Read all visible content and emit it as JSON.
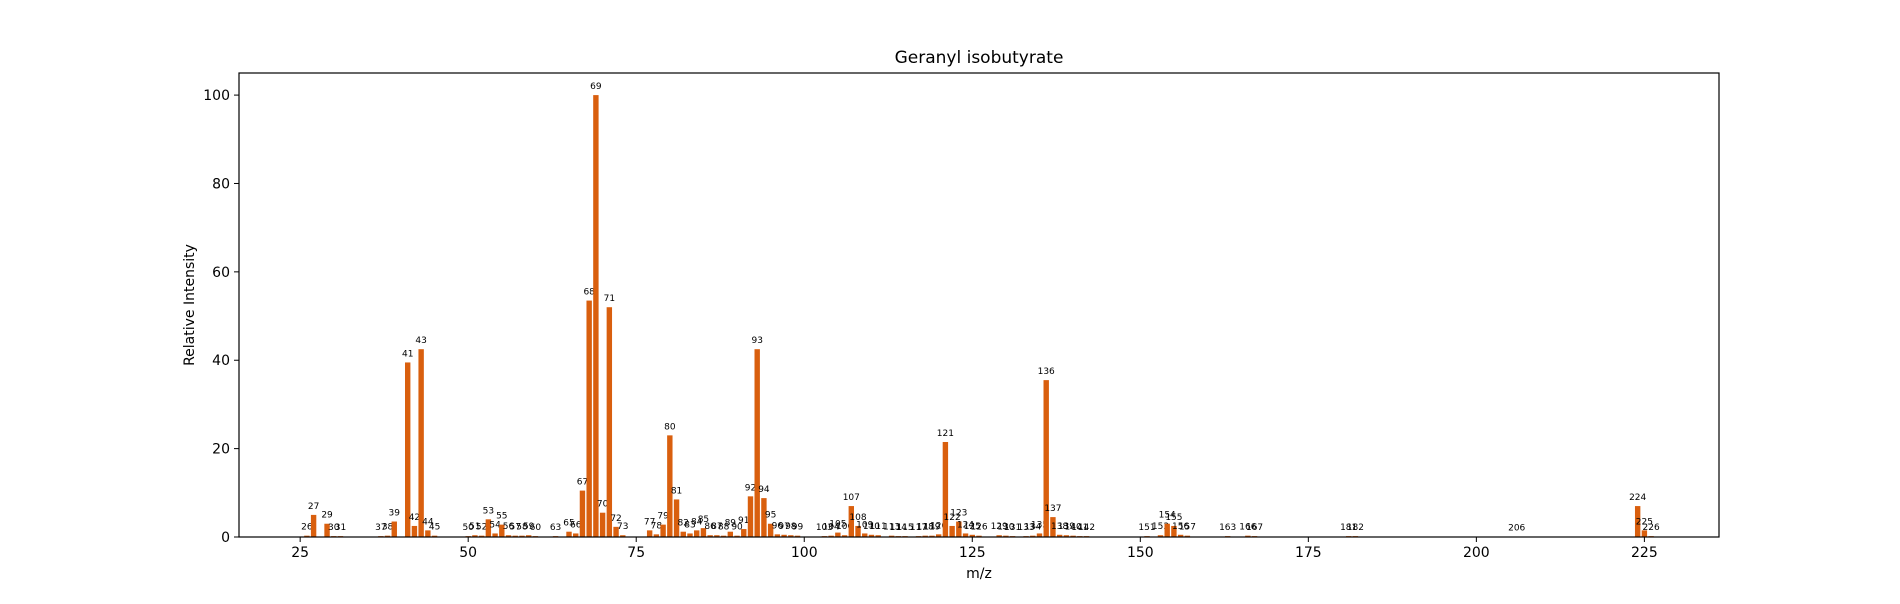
{
  "chart_data": {
    "type": "bar",
    "title": "Geranyl isobutyrate",
    "xlabel": "m/z",
    "ylabel": "Relative Intensity",
    "xlim": [
      15.9,
      236.1
    ],
    "ylim": [
      0,
      105
    ],
    "xticks": [
      25,
      50,
      75,
      100,
      125,
      150,
      175,
      200,
      225
    ],
    "yticks": [
      0,
      20,
      40,
      60,
      80,
      100
    ],
    "grid": false,
    "bar_color": "#d95f0e",
    "x": [
      26,
      27,
      29,
      30,
      31,
      37,
      38,
      39,
      41,
      42,
      43,
      44,
      45,
      50,
      51,
      52,
      53,
      54,
      55,
      56,
      57,
      58,
      59,
      60,
      63,
      65,
      66,
      67,
      68,
      69,
      70,
      71,
      72,
      73,
      77,
      78,
      79,
      80,
      81,
      82,
      83,
      84,
      85,
      86,
      87,
      88,
      89,
      90,
      91,
      92,
      93,
      94,
      95,
      96,
      97,
      98,
      99,
      103,
      104,
      105,
      106,
      107,
      108,
      109,
      110,
      111,
      113,
      114,
      115,
      117,
      118,
      119,
      120,
      121,
      122,
      123,
      124,
      125,
      126,
      129,
      130,
      131,
      133,
      134,
      135,
      136,
      137,
      138,
      139,
      140,
      141,
      142,
      151,
      153,
      154,
      155,
      156,
      157,
      163,
      166,
      167,
      181,
      182,
      206,
      224,
      225,
      226
    ],
    "y": [
      0.3,
      5.0,
      3.0,
      0.2,
      0.2,
      0.2,
      0.3,
      3.5,
      39.5,
      2.5,
      42.5,
      1.5,
      0.3,
      0.2,
      0.4,
      0.3,
      4.0,
      0.8,
      2.8,
      0.4,
      0.3,
      0.3,
      0.4,
      0.2,
      0.2,
      1.2,
      0.8,
      10.5,
      53.5,
      100,
      5.5,
      52,
      2.3,
      0.4,
      1.5,
      0.6,
      2.8,
      23,
      8.5,
      1.2,
      0.8,
      1.5,
      2.0,
      0.4,
      0.4,
      0.3,
      1.2,
      0.3,
      1.8,
      9.2,
      42.5,
      8.8,
      3.0,
      0.6,
      0.5,
      0.4,
      0.3,
      0.2,
      0.3,
      1.0,
      0.4,
      7.0,
      2.5,
      0.8,
      0.5,
      0.4,
      0.3,
      0.2,
      0.2,
      0.2,
      0.3,
      0.3,
      0.6,
      21.5,
      2.5,
      3.5,
      0.8,
      0.5,
      0.3,
      0.4,
      0.3,
      0.2,
      0.2,
      0.3,
      0.8,
      35.5,
      4.5,
      0.5,
      0.4,
      0.3,
      0.2,
      0.2,
      0.2,
      0.4,
      3.0,
      2.5,
      0.5,
      0.3,
      0.2,
      0.3,
      0.2,
      0.2,
      0.2,
      0.1,
      7.0,
      1.5,
      0.2
    ]
  }
}
